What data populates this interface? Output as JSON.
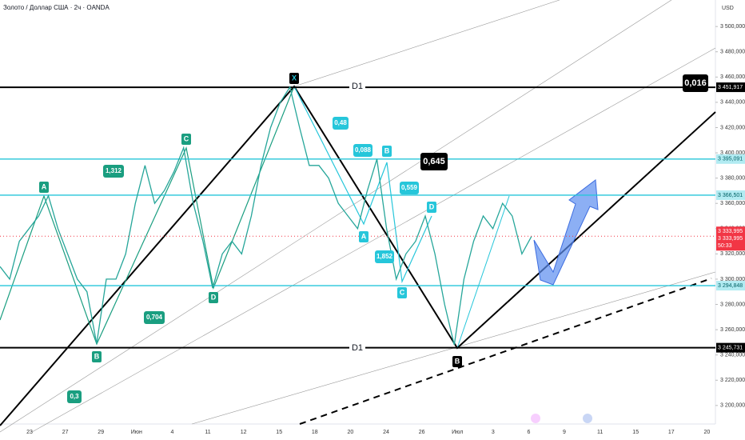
{
  "chart_data": {
    "type": "line",
    "title": "Золото / Доллар США · 2ч · OANDA",
    "currency": "USD",
    "color": "#26a69a",
    "values": [
      3310,
      3300,
      3330,
      3340,
      3350,
      3366,
      3340,
      3320,
      3300,
      3290,
      3249,
      3300,
      3300,
      3320,
      3360,
      3390,
      3360,
      3370,
      3385,
      3404,
      3360,
      3330,
      3293,
      3320,
      3330,
      3320,
      3350,
      3390,
      3420,
      3440,
      3452,
      3420,
      3390,
      3390,
      3380,
      3360,
      3350,
      3340,
      3370,
      3395,
      3340,
      3300,
      3320,
      3330,
      3350,
      3320,
      3280,
      3248,
      3300,
      3330,
      3350,
      3340,
      3360,
      3350,
      3320,
      3334
    ],
    "ylim": [
      3179,
      3521
    ],
    "yticks": [
      {
        "value": 3200,
        "label": "3 200,000"
      },
      {
        "value": 3220,
        "label": "3 220,000"
      },
      {
        "value": 3240,
        "label": "3 240,000"
      },
      {
        "value": 3260,
        "label": "3 260,000"
      },
      {
        "value": 3280,
        "label": "3 280,000"
      },
      {
        "value": 3300,
        "label": "3 300,000"
      },
      {
        "value": 3320,
        "label": "3 320,000"
      },
      {
        "value": 3340,
        "label": "3 340,000"
      },
      {
        "value": 3360,
        "label": "3 360,000"
      },
      {
        "value": 3380,
        "label": "3 380,000"
      },
      {
        "value": 3400,
        "label": "3 400,000"
      },
      {
        "value": 3420,
        "label": "3 420,000"
      },
      {
        "value": 3440,
        "label": "3 440,000"
      },
      {
        "value": 3460,
        "label": "3 460,000"
      },
      {
        "value": 3480,
        "label": "3 480,000"
      },
      {
        "value": 3500,
        "label": "3 500,000"
      }
    ],
    "x_labels": [
      "23",
      "27",
      "29",
      "Июн",
      "4",
      "11",
      "12",
      "15",
      "18",
      "20",
      "24",
      "26",
      "Июл",
      "3",
      "6",
      "9",
      "11",
      "15",
      "17",
      "20"
    ],
    "levels": [
      {
        "value": 3451.917,
        "label": "3 451,917",
        "color": "#000000"
      },
      {
        "value": 3395.091,
        "label": "3 395,091",
        "color": "#26c6da"
      },
      {
        "value": 3366.501,
        "label": "3 366,501",
        "color": "#26c6da"
      },
      {
        "value": 3294.848,
        "label": "3 294,848",
        "color": "#26c6da"
      },
      {
        "value": 3245.731,
        "label": "3 245,731",
        "color": "#000000"
      }
    ],
    "last_price": {
      "value": 3333.995,
      "label": "3 333,995",
      "close_label": "3 333,995",
      "countdown": "50:33",
      "color": "#f23645"
    },
    "pattern_labels": [
      "A",
      "B",
      "C",
      "D",
      "X",
      "A",
      "B",
      "C",
      "D",
      "B"
    ],
    "ratios": [
      "1,312",
      "0,704",
      "0,3",
      "0,48",
      "0,088",
      "0,559",
      "1,852",
      "0,645",
      "0,016"
    ],
    "level_names": [
      "D1",
      "D1"
    ]
  }
}
